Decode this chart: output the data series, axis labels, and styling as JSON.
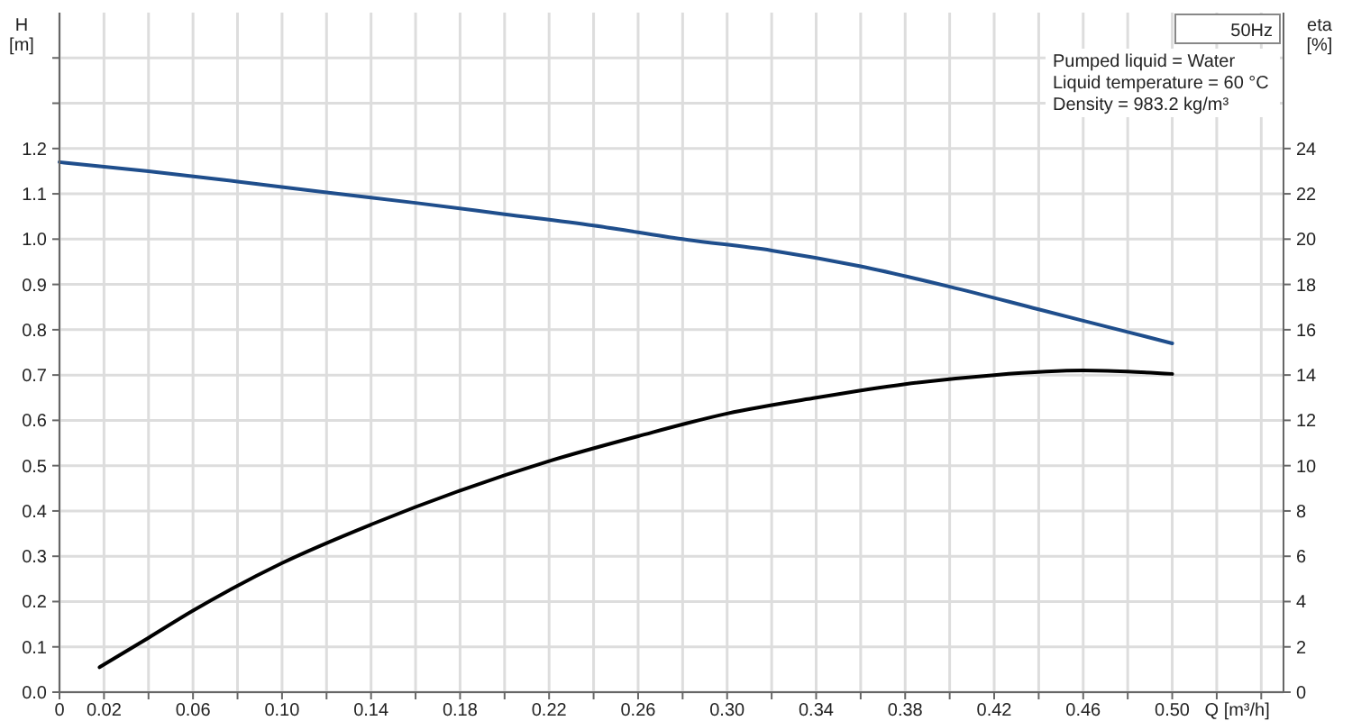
{
  "chart_data": {
    "type": "line",
    "xlabel": "Q [m³/h]",
    "ylabel": "H [m]",
    "y2label": "eta [%]",
    "annotations": [
      "50Hz",
      "Pumped liquid = Water",
      "Liquid temperature = 60 °C",
      "Density = 983.2 kg/m³"
    ],
    "series": [
      {
        "color": "#1f4e8c",
        "x": [
          0,
          0.04,
          0.08,
          0.12,
          0.16,
          0.2,
          0.24,
          0.28,
          0.32,
          0.36,
          0.4,
          0.44,
          0.48,
          0.5
        ],
        "values": [
          1.17,
          1.15,
          1.127,
          1.103,
          1.08,
          1.055,
          1.03,
          1.0,
          0.975,
          0.94,
          0.895,
          0.845,
          0.795,
          0.77
        ]
      },
      {
        "color": "#000000",
        "axis": "y2",
        "x": [
          0.018,
          0.04,
          0.06,
          0.1,
          0.14,
          0.18,
          0.22,
          0.26,
          0.3,
          0.34,
          0.38,
          0.42,
          0.46,
          0.48,
          0.5
        ],
        "values": [
          1.1,
          2.4,
          3.6,
          5.7,
          7.4,
          8.9,
          10.2,
          11.3,
          12.3,
          13.0,
          13.6,
          14.0,
          14.2,
          14.15,
          14.05
        ]
      }
    ],
    "xlim": [
      0,
      0.55
    ],
    "xticks": [
      0,
      {
        "value": 0.02,
        "label": "0.02"
      },
      {
        "value": 0.04,
        "label": null
      },
      {
        "value": 0.06,
        "label": "0.06"
      },
      {
        "value": 0.08,
        "label": null
      },
      {
        "value": 0.1,
        "label": "0.10"
      },
      {
        "value": 0.12,
        "label": null
      },
      {
        "value": 0.14,
        "label": "0.14"
      },
      {
        "value": 0.16,
        "label": null
      },
      {
        "value": 0.18,
        "label": "0.18"
      },
      {
        "value": 0.2,
        "label": null
      },
      {
        "value": 0.22,
        "label": "0.22"
      },
      {
        "value": 0.24,
        "label": null
      },
      {
        "value": 0.26,
        "label": "0.26"
      },
      {
        "value": 0.28,
        "label": null
      },
      {
        "value": 0.3,
        "label": "0.30"
      },
      {
        "value": 0.32,
        "label": null
      },
      {
        "value": 0.34,
        "label": "0.34"
      },
      {
        "value": 0.36,
        "label": null
      },
      {
        "value": 0.38,
        "label": "0.38"
      },
      {
        "value": 0.4,
        "label": null
      },
      {
        "value": 0.42,
        "label": "0.42"
      },
      {
        "value": 0.44,
        "label": null
      },
      {
        "value": 0.46,
        "label": "0.46"
      },
      {
        "value": 0.48,
        "label": null
      },
      {
        "value": 0.5,
        "label": "0.50"
      },
      {
        "value": 0.52,
        "label": null
      },
      {
        "value": 0.54,
        "label": null
      }
    ],
    "ylim": [
      0,
      1.5
    ],
    "yticks": [
      {
        "value": 0,
        "label": "0.0"
      },
      0.1,
      0.2,
      0.3,
      0.4,
      0.5,
      0.6,
      0.7,
      0.8,
      0.9,
      {
        "value": 1,
        "label": "1.0"
      },
      1.1,
      1.2,
      {
        "value": 1.3,
        "label": null
      },
      {
        "value": 1.4,
        "label": null
      }
    ],
    "y2lim": [
      0,
      30
    ],
    "y2ticks": [
      0,
      2,
      4,
      6,
      8,
      10,
      12,
      14,
      16,
      18,
      20,
      22,
      24
    ],
    "grid": true,
    "marker": "none",
    "line_style": "solid"
  }
}
